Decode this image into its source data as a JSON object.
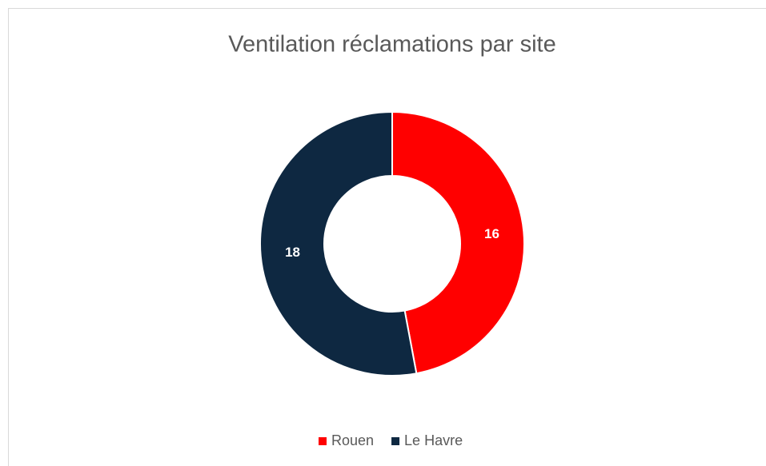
{
  "chart_data": {
    "type": "donut",
    "title": "Ventilation réclamations par site",
    "categories": [
      "Rouen",
      "Le Havre"
    ],
    "values": [
      16,
      18
    ],
    "colors": [
      "#ff0000",
      "#0e2841"
    ],
    "legend": "bottom"
  }
}
